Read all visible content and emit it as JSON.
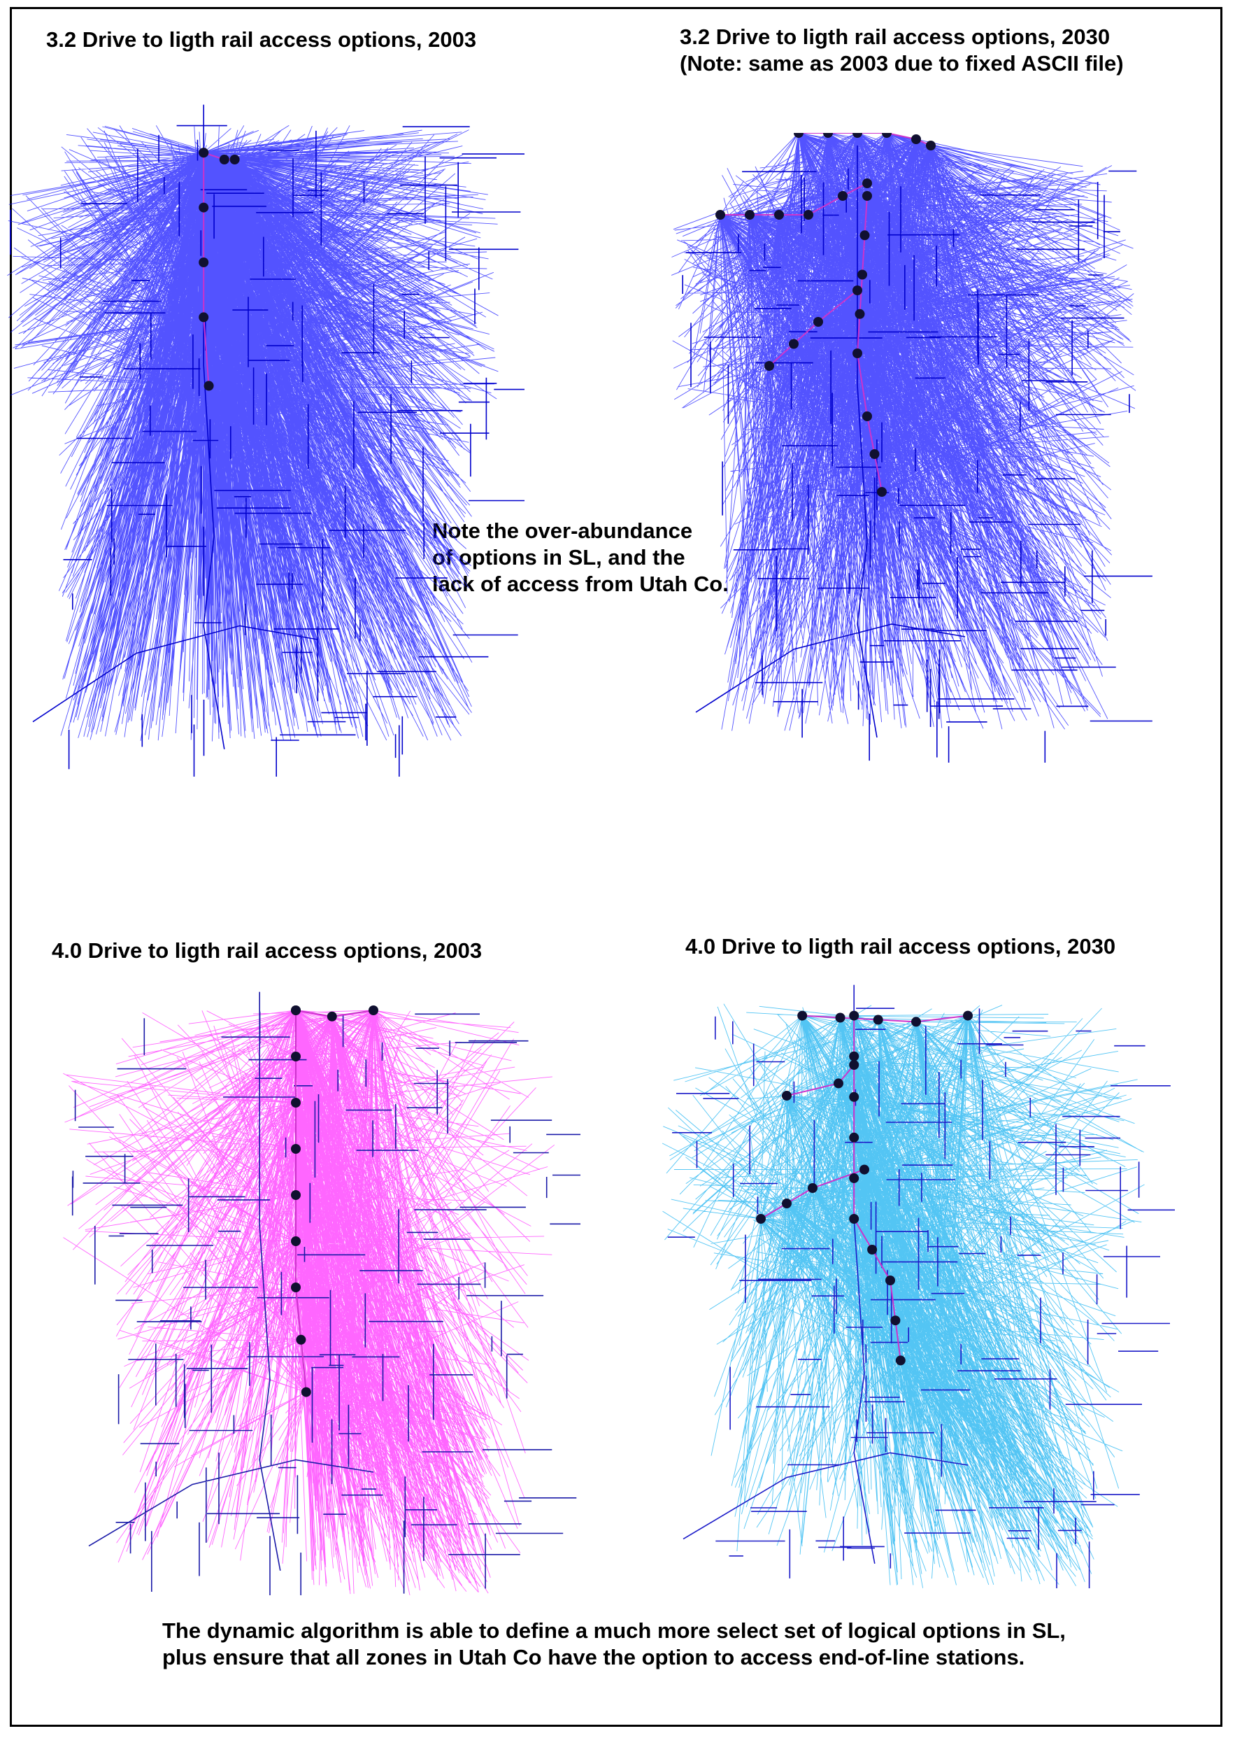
{
  "panels": [
    {
      "id": "p32_2003",
      "title": "3.2 Drive to ligth rail access options, 2003",
      "note": "",
      "connector_color": "#1a1aff",
      "network_color": "#0000cc",
      "connector_count": 2600,
      "line_count": 1,
      "stations": 14
    },
    {
      "id": "p32_2030",
      "title": "3.2 Drive to ligth rail access options, 2030",
      "note": "(Note: same as 2003 due to fixed ASCII file)",
      "connector_color": "#1a1aff",
      "network_color": "#0000cc",
      "connector_count": 2000,
      "line_count": 4,
      "stations": 44
    },
    {
      "id": "p40_2003",
      "title": "4.0 Drive to ligth rail access options, 2003",
      "note": "",
      "connector_color": "#ff33ff",
      "network_color": "#1a1aa8",
      "connector_count": 1200,
      "line_count": 1,
      "stations": 20
    },
    {
      "id": "p40_2030",
      "title": "4.0 Drive to ligth rail access options, 2030",
      "note": "",
      "connector_color": "#19b2f0",
      "network_color": "#1a1ac8",
      "connector_count": 1100,
      "line_count": 4,
      "stations": 46
    }
  ],
  "middle_note": "Note the over-abundance\nof options in SL,  and the\nlack of access from Utah Co.",
  "bottom_note": "The dynamic algorithm is able to define a much more select set of logical options in SL,\nplus ensure that all zones in Utah Co have the option to access end-of-line stations.",
  "colors": {
    "station_fill": "#101030",
    "rail_line": "#cc33cc",
    "highlight": "#ffcc00",
    "frame": "#000000"
  }
}
